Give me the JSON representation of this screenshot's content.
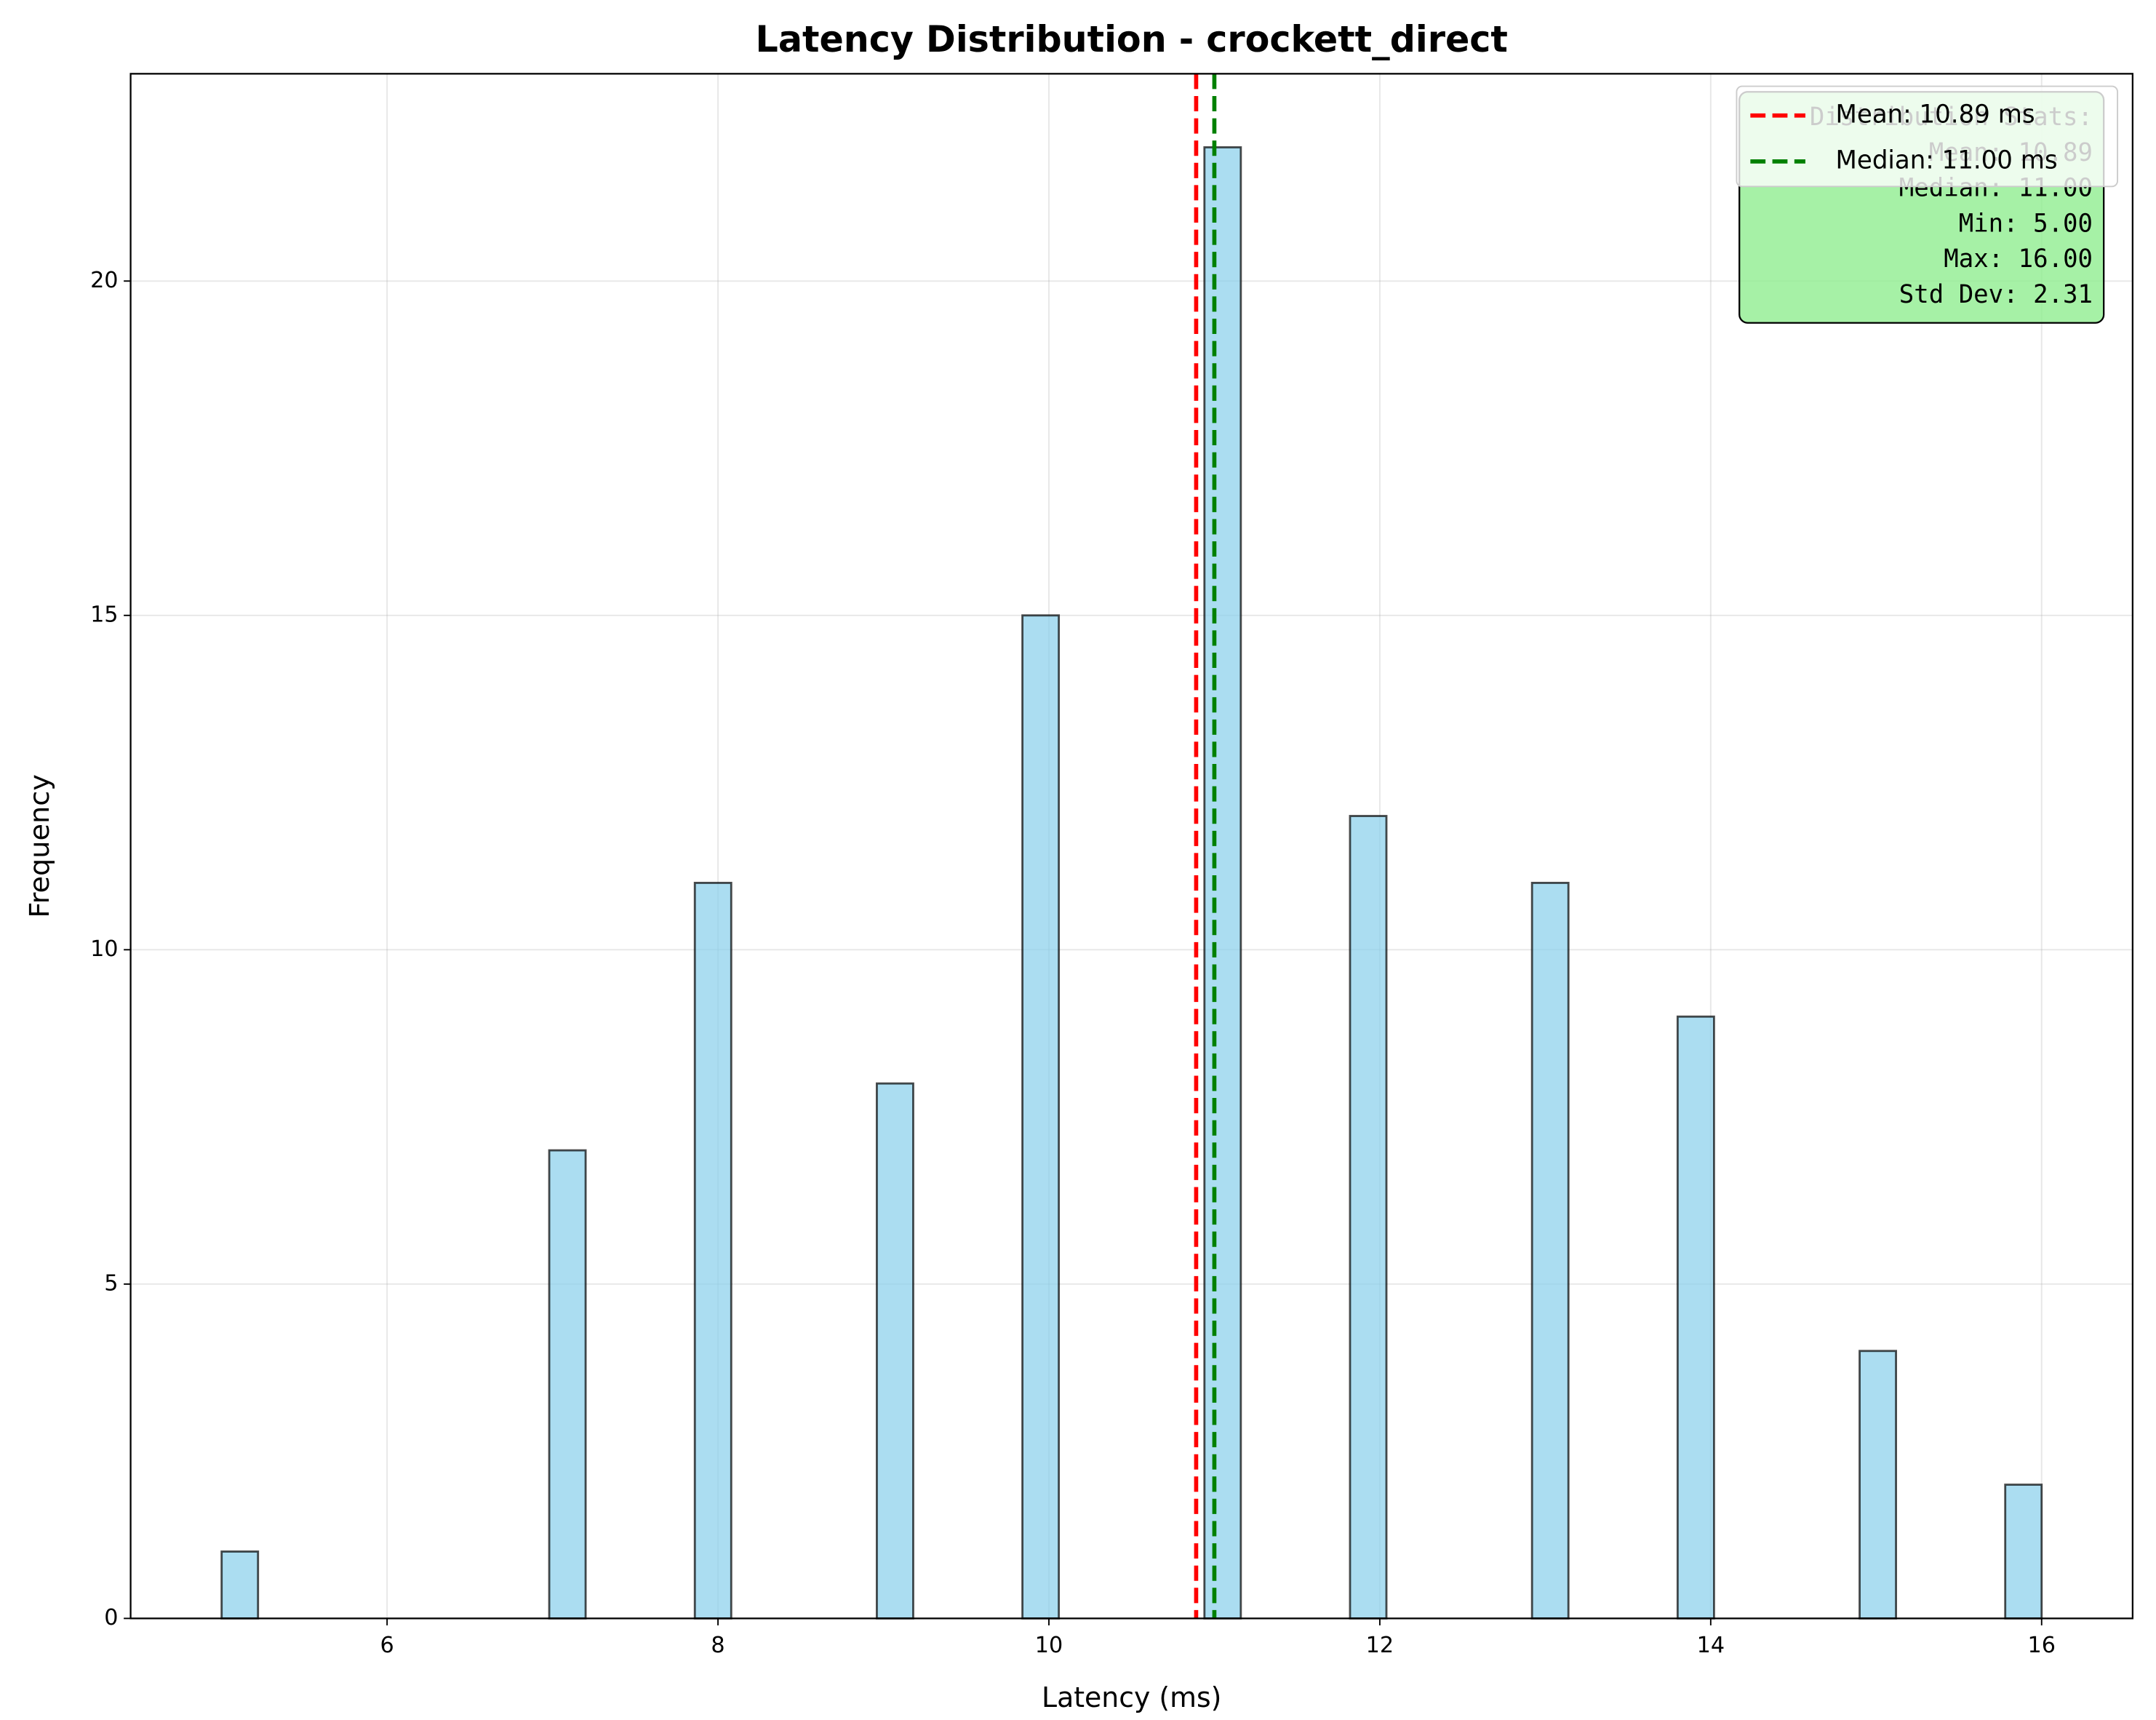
{
  "chart_data": {
    "type": "histogram",
    "title": "Latency Distribution - crockett_direct",
    "x_label": "Latency (ms)",
    "y_label": "Frequency",
    "bins": [
      5,
      5.22,
      5.44,
      5.66,
      5.88,
      6.1,
      6.32,
      6.54,
      6.76,
      6.98,
      7.2,
      7.42,
      7.64,
      7.86,
      8.08,
      8.3,
      8.52,
      8.74,
      8.96,
      9.18,
      9.4,
      9.62,
      9.84,
      10.06,
      10.28,
      10.5,
      10.72,
      10.94,
      11.16,
      11.38,
      11.6,
      11.82,
      12.04,
      12.26,
      12.48,
      12.7,
      12.92,
      13.14,
      13.36,
      13.58,
      13.8,
      14.02,
      14.24,
      14.46,
      14.68,
      14.9,
      15.12,
      15.34,
      15.56,
      15.78,
      16
    ],
    "values": [
      1,
      0,
      0,
      0,
      0,
      0,
      0,
      0,
      0,
      7,
      0,
      0,
      0,
      11,
      0,
      0,
      0,
      0,
      8,
      0,
      0,
      0,
      15,
      0,
      0,
      0,
      0,
      22,
      0,
      0,
      0,
      12,
      0,
      0,
      0,
      0,
      11,
      0,
      0,
      0,
      9,
      0,
      0,
      0,
      0,
      4,
      0,
      0,
      0,
      2
    ],
    "color": "#87ceeb",
    "xlim": [
      4.45,
      16.55
    ],
    "xticks": [
      6,
      8,
      10,
      12,
      14,
      16
    ],
    "ylim": [
      0,
      23.1
    ],
    "yticks": [
      0,
      5,
      10,
      15,
      20
    ],
    "grid": true,
    "vlines": [
      {
        "name": "Mean: 10.89 ms",
        "value": 10.89,
        "color": "#ff0000"
      },
      {
        "name": "Median: 11.00 ms",
        "value": 11.0,
        "color": "#008000"
      }
    ],
    "legend": "upper right",
    "stats_box": {
      "color": "#90ee90",
      "lines": [
        "Distribution Stats:",
        "Mean: 10.89",
        "Median: 11.00",
        "Min: 5.00",
        "Max: 16.00",
        "Std Dev: 2.31"
      ]
    }
  }
}
